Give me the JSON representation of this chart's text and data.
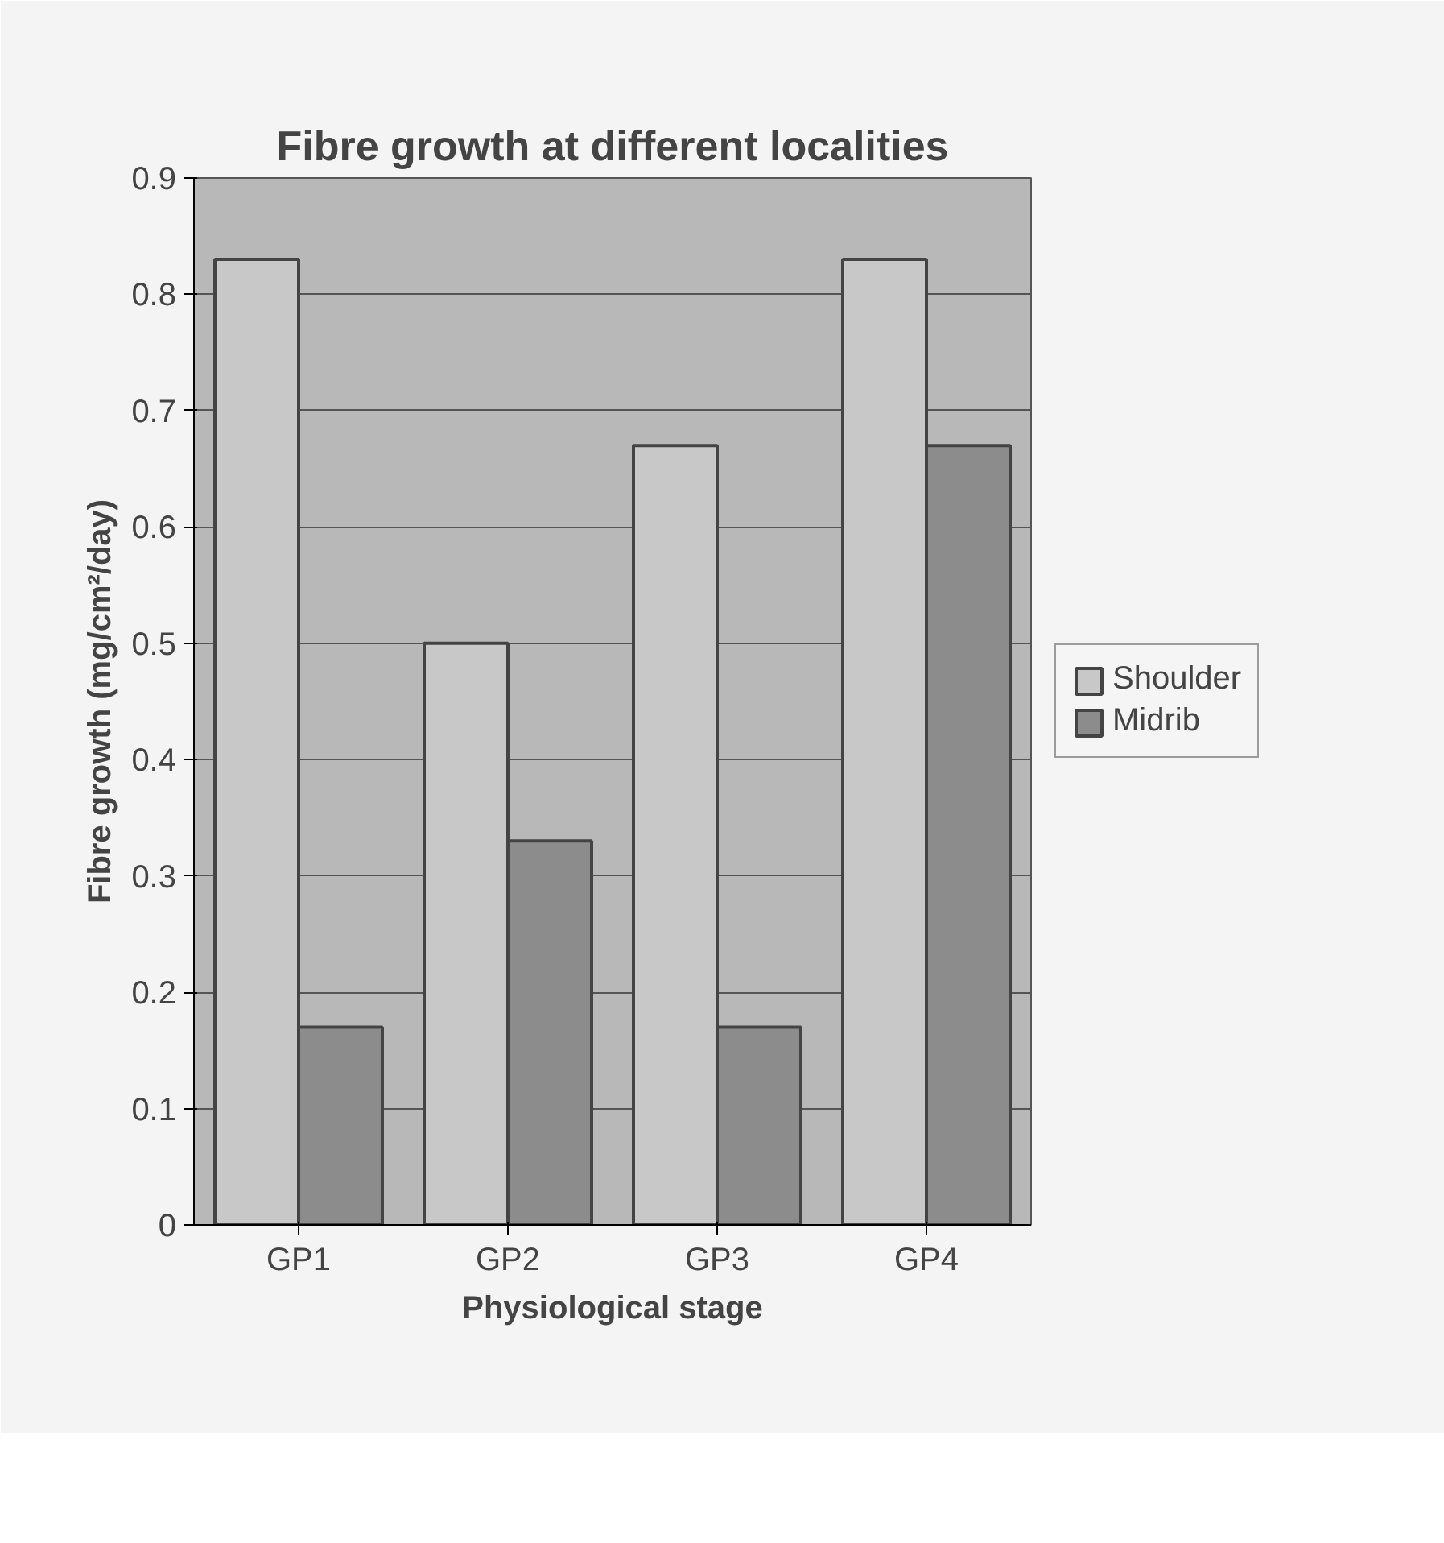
{
  "chart_data": {
    "type": "bar",
    "title": "Fibre growth at different localities",
    "xlabel": "Physiological stage",
    "ylabel": "Fibre growth (mg/cm²/day)",
    "categories": [
      "GP1",
      "GP2",
      "GP3",
      "GP4"
    ],
    "series": [
      {
        "name": "Shoulder",
        "color": "#c8c8c8",
        "values": [
          0.83,
          0.5,
          0.67,
          0.83
        ]
      },
      {
        "name": "Midrib",
        "color": "#8c8c8c",
        "values": [
          0.17,
          0.33,
          0.17,
          0.67
        ]
      }
    ],
    "ylim": [
      0,
      0.9
    ],
    "yticks": [
      0,
      0.1,
      0.2,
      0.3,
      0.4,
      0.5,
      0.6,
      0.7,
      0.8,
      0.9
    ],
    "grid": "y",
    "legend": "right"
  }
}
